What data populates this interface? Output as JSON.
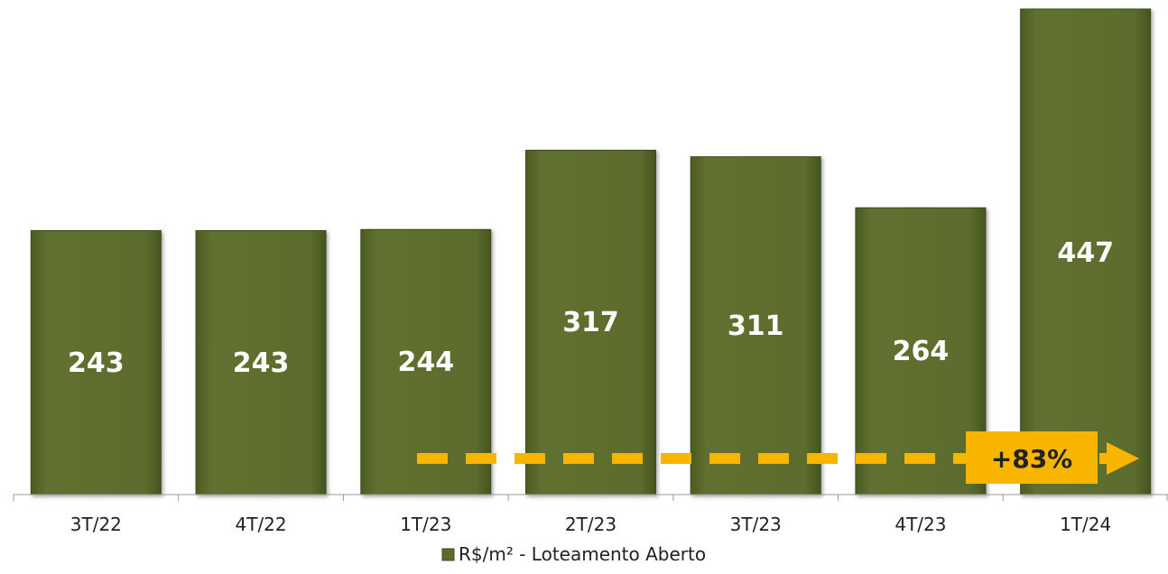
{
  "chart_data": {
    "type": "bar",
    "categories": [
      "3T/22",
      "4T/22",
      "1T/23",
      "2T/23",
      "3T/23",
      "4T/23",
      "1T/24"
    ],
    "series": [
      {
        "name": "R$/m² - Loteamento Aberto",
        "values": [
          243,
          243,
          244,
          317,
          311,
          264,
          447
        ]
      }
    ],
    "data_labels": [
      "243",
      "243",
      "244",
      "317",
      "311",
      "264",
      "447"
    ],
    "ylim": [
      0,
      447
    ],
    "grid": false,
    "legend": {
      "position": "bottom",
      "label": "R$/m² - Loteamento Aberto"
    },
    "annotation": {
      "text": "+83%",
      "type": "dashed-arrow"
    },
    "colors": {
      "bar": "#5a6b2c",
      "bar_edge": "#3f4c1c",
      "accent": "#f7b500",
      "axis": "#9a9a9a"
    }
  }
}
